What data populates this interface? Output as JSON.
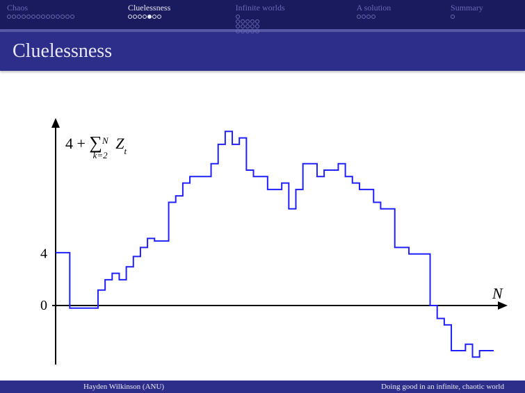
{
  "nav": {
    "sections": [
      {
        "label": "Chaos",
        "active": false,
        "dots": [
          [
            14
          ]
        ]
      },
      {
        "label": "Cluelessness",
        "active": true,
        "dots": [
          [
            7
          ]
        ],
        "current": 4
      },
      {
        "label": "Infinite worlds",
        "active": false,
        "dots": [
          [
            1
          ],
          [
            5
          ],
          [
            5
          ],
          [
            5
          ]
        ]
      },
      {
        "label": "A solution",
        "active": false,
        "dots": [
          [
            4
          ]
        ]
      },
      {
        "label": "Summary",
        "active": false,
        "dots": [
          [
            1
          ]
        ]
      }
    ]
  },
  "title": "Cluelessness",
  "chart": {
    "type": "step-line",
    "line_color": "#2020ff",
    "line_width": 2,
    "axis_color": "#000000",
    "axis_width": 2,
    "y_label_expr": "4 + ∑ Z_t  (k=2..N)",
    "x_label": "N",
    "y_ticks": [
      0,
      4
    ],
    "background": "#ffffff",
    "x_range": [
      0,
      62
    ],
    "y_range": [
      -5,
      14
    ],
    "data": [
      {
        "x": 0,
        "y": 4.1
      },
      {
        "x": 1,
        "y": 4.1
      },
      {
        "x": 2,
        "y": -0.2
      },
      {
        "x": 3,
        "y": -0.2
      },
      {
        "x": 4,
        "y": -0.2
      },
      {
        "x": 5,
        "y": -0.2
      },
      {
        "x": 6,
        "y": 1.2
      },
      {
        "x": 7,
        "y": 2.0
      },
      {
        "x": 8,
        "y": 2.5
      },
      {
        "x": 9,
        "y": 2.0
      },
      {
        "x": 10,
        "y": 3.0
      },
      {
        "x": 11,
        "y": 3.8
      },
      {
        "x": 12,
        "y": 4.5
      },
      {
        "x": 13,
        "y": 5.2
      },
      {
        "x": 14,
        "y": 5.0
      },
      {
        "x": 15,
        "y": 5.0
      },
      {
        "x": 16,
        "y": 8.0
      },
      {
        "x": 17,
        "y": 8.5
      },
      {
        "x": 18,
        "y": 9.5
      },
      {
        "x": 19,
        "y": 10.0
      },
      {
        "x": 20,
        "y": 10.0
      },
      {
        "x": 21,
        "y": 10.0
      },
      {
        "x": 22,
        "y": 11.0
      },
      {
        "x": 23,
        "y": 12.5
      },
      {
        "x": 24,
        "y": 13.5
      },
      {
        "x": 25,
        "y": 12.5
      },
      {
        "x": 26,
        "y": 13.0
      },
      {
        "x": 27,
        "y": 10.5
      },
      {
        "x": 28,
        "y": 10.0
      },
      {
        "x": 29,
        "y": 10.0
      },
      {
        "x": 30,
        "y": 9.0
      },
      {
        "x": 31,
        "y": 9.0
      },
      {
        "x": 32,
        "y": 9.5
      },
      {
        "x": 33,
        "y": 7.5
      },
      {
        "x": 34,
        "y": 9.0
      },
      {
        "x": 35,
        "y": 11.0
      },
      {
        "x": 36,
        "y": 11.0
      },
      {
        "x": 37,
        "y": 10.0
      },
      {
        "x": 38,
        "y": 10.5
      },
      {
        "x": 39,
        "y": 10.5
      },
      {
        "x": 40,
        "y": 11.0
      },
      {
        "x": 41,
        "y": 10.0
      },
      {
        "x": 42,
        "y": 9.5
      },
      {
        "x": 43,
        "y": 9.0
      },
      {
        "x": 44,
        "y": 9.0
      },
      {
        "x": 45,
        "y": 8.0
      },
      {
        "x": 46,
        "y": 7.5
      },
      {
        "x": 47,
        "y": 7.5
      },
      {
        "x": 48,
        "y": 4.5
      },
      {
        "x": 49,
        "y": 4.5
      },
      {
        "x": 50,
        "y": 4.0
      },
      {
        "x": 51,
        "y": 4.0
      },
      {
        "x": 52,
        "y": 4.0
      },
      {
        "x": 53,
        "y": 0.0
      },
      {
        "x": 54,
        "y": -1.0
      },
      {
        "x": 55,
        "y": -1.5
      },
      {
        "x": 56,
        "y": -3.5
      },
      {
        "x": 57,
        "y": -3.5
      },
      {
        "x": 58,
        "y": -3.0
      },
      {
        "x": 59,
        "y": -4.0
      },
      {
        "x": 60,
        "y": -3.5
      },
      {
        "x": 61,
        "y": -3.5
      }
    ]
  },
  "footer": {
    "author": "Hayden Wilkinson (ANU)",
    "talk_title": "Doing good in an infinite, chaotic world"
  }
}
